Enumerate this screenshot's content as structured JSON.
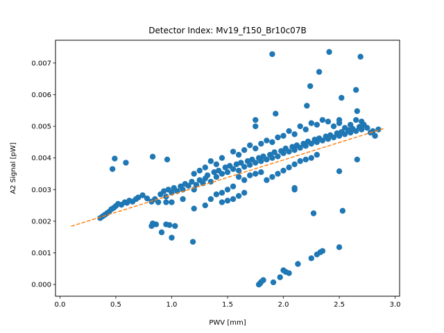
{
  "chart_data": {
    "type": "scatter",
    "title": "Detector Index: Mv19_f150_Br10c07B",
    "xlabel": "PWV [mm]",
    "ylabel": "A2 Signal [pW]",
    "xlim": [
      -0.04,
      3.04
    ],
    "ylim": [
      -0.00037,
      0.00772
    ],
    "xticks": [
      0.0,
      0.5,
      1.0,
      1.5,
      2.0,
      2.5,
      3.0
    ],
    "xtick_labels": [
      "0.0",
      "0.5",
      "1.0",
      "1.5",
      "2.0",
      "2.5",
      "3.0"
    ],
    "yticks": [
      0.0,
      0.001,
      0.002,
      0.003,
      0.004,
      0.005,
      0.006,
      0.007
    ],
    "ytick_labels": [
      "0.000",
      "0.001",
      "0.002",
      "0.003",
      "0.004",
      "0.005",
      "0.006",
      "0.007"
    ],
    "grid": false,
    "series": [
      {
        "name": "data",
        "style": "markers",
        "color": "#1f77b4",
        "points": [
          [
            0.36,
            0.0021
          ],
          [
            0.38,
            0.00215
          ],
          [
            0.4,
            0.0022
          ],
          [
            0.42,
            0.00225
          ],
          [
            0.44,
            0.0023
          ],
          [
            0.46,
            0.00238
          ],
          [
            0.48,
            0.00242
          ],
          [
            0.5,
            0.00248
          ],
          [
            0.52,
            0.00255
          ],
          [
            0.55,
            0.00252
          ],
          [
            0.58,
            0.0026
          ],
          [
            0.6,
            0.00258
          ],
          [
            0.62,
            0.00265
          ],
          [
            0.65,
            0.00262
          ],
          [
            0.68,
            0.0027
          ],
          [
            0.7,
            0.00275
          ],
          [
            0.74,
            0.00282
          ],
          [
            0.78,
            0.00272
          ],
          [
            0.82,
            0.00262
          ],
          [
            0.85,
            0.0027
          ],
          [
            0.88,
            0.0026
          ],
          [
            0.9,
            0.00285
          ],
          [
            0.93,
            0.00295
          ],
          [
            0.95,
            0.00278
          ],
          [
            0.97,
            0.003
          ],
          [
            1.0,
            0.0029
          ],
          [
            1.02,
            0.00305
          ],
          [
            1.05,
            0.00295
          ],
          [
            1.08,
            0.0031
          ],
          [
            1.1,
            0.003
          ],
          [
            1.12,
            0.00318
          ],
          [
            1.15,
            0.00312
          ],
          [
            1.18,
            0.00325
          ],
          [
            1.2,
            0.003
          ],
          [
            1.22,
            0.00315
          ],
          [
            1.25,
            0.0033
          ],
          [
            1.28,
            0.0032
          ],
          [
            1.3,
            0.00335
          ],
          [
            1.32,
            0.00345
          ],
          [
            1.35,
            0.00325
          ],
          [
            1.38,
            0.00355
          ],
          [
            1.4,
            0.0034
          ],
          [
            1.42,
            0.0036
          ],
          [
            1.45,
            0.0035
          ],
          [
            1.48,
            0.0037
          ],
          [
            1.5,
            0.00355
          ],
          [
            1.52,
            0.00375
          ],
          [
            1.55,
            0.00365
          ],
          [
            1.58,
            0.0038
          ],
          [
            1.6,
            0.0036
          ],
          [
            1.62,
            0.00385
          ],
          [
            1.65,
            0.00372
          ],
          [
            1.68,
            0.0039
          ],
          [
            1.7,
            0.00378
          ],
          [
            1.72,
            0.00395
          ],
          [
            1.75,
            0.00385
          ],
          [
            1.78,
            0.004
          ],
          [
            1.8,
            0.0039
          ],
          [
            1.82,
            0.00405
          ],
          [
            1.85,
            0.00395
          ],
          [
            1.88,
            0.0041
          ],
          [
            1.9,
            0.004
          ],
          [
            1.92,
            0.00418
          ],
          [
            1.95,
            0.00405
          ],
          [
            1.98,
            0.00422
          ],
          [
            2.0,
            0.00415
          ],
          [
            2.02,
            0.0043
          ],
          [
            2.05,
            0.0042
          ],
          [
            2.08,
            0.00435
          ],
          [
            2.1,
            0.00425
          ],
          [
            2.12,
            0.0044
          ],
          [
            2.15,
            0.00432
          ],
          [
            2.18,
            0.00445
          ],
          [
            2.2,
            0.00438
          ],
          [
            2.22,
            0.00452
          ],
          [
            2.25,
            0.00445
          ],
          [
            2.28,
            0.00458
          ],
          [
            2.3,
            0.0045
          ],
          [
            2.32,
            0.00462
          ],
          [
            2.35,
            0.00455
          ],
          [
            2.38,
            0.00468
          ],
          [
            2.4,
            0.0046
          ],
          [
            2.42,
            0.00472
          ],
          [
            2.45,
            0.00465
          ],
          [
            2.48,
            0.00478
          ],
          [
            2.5,
            0.0047
          ],
          [
            2.52,
            0.00482
          ],
          [
            2.55,
            0.00475
          ],
          [
            2.58,
            0.00488
          ],
          [
            2.6,
            0.0048
          ],
          [
            2.62,
            0.00492
          ],
          [
            2.65,
            0.00485
          ],
          [
            2.68,
            0.00498
          ],
          [
            2.7,
            0.0049
          ],
          [
            2.72,
            0.00505
          ],
          [
            2.75,
            0.00495
          ],
          [
            2.78,
            0.0048
          ],
          [
            2.8,
            0.00485
          ],
          [
            2.82,
            0.0047
          ],
          [
            2.85,
            0.0049
          ],
          [
            2.0,
            0.0047
          ],
          [
            2.05,
            0.00485
          ],
          [
            2.1,
            0.00475
          ],
          [
            2.15,
            0.005
          ],
          [
            2.2,
            0.0049
          ],
          [
            2.25,
            0.0051
          ],
          [
            2.3,
            0.00505
          ],
          [
            2.35,
            0.0052
          ],
          [
            2.4,
            0.00515
          ],
          [
            2.45,
            0.005
          ],
          [
            2.5,
            0.0051
          ],
          [
            2.55,
            0.00495
          ],
          [
            2.6,
            0.00505
          ],
          [
            2.65,
            0.0052
          ],
          [
            2.7,
            0.00515
          ],
          [
            1.7,
            0.0044
          ],
          [
            1.75,
            0.0043
          ],
          [
            1.8,
            0.00445
          ],
          [
            1.85,
            0.00455
          ],
          [
            1.9,
            0.0045
          ],
          [
            1.95,
            0.00465
          ],
          [
            1.55,
            0.0042
          ],
          [
            1.6,
            0.0041
          ],
          [
            1.65,
            0.00425
          ],
          [
            1.45,
            0.004
          ],
          [
            1.4,
            0.0038
          ],
          [
            1.35,
            0.0039
          ],
          [
            1.3,
            0.0037
          ],
          [
            1.25,
            0.0036
          ],
          [
            1.2,
            0.0035
          ],
          [
            1.6,
            0.0034
          ],
          [
            1.65,
            0.0033
          ],
          [
            1.7,
            0.00345
          ],
          [
            1.75,
            0.0035
          ],
          [
            1.8,
            0.00355
          ],
          [
            1.5,
            0.003
          ],
          [
            1.55,
            0.0031
          ],
          [
            1.45,
            0.0029
          ],
          [
            1.4,
            0.00285
          ],
          [
            1.35,
            0.0027
          ],
          [
            1.85,
            0.0033
          ],
          [
            1.9,
            0.0034
          ],
          [
            1.95,
            0.0035
          ],
          [
            2.0,
            0.0036
          ],
          [
            2.05,
            0.0037
          ],
          [
            2.1,
            0.0038
          ],
          [
            2.15,
            0.0039
          ],
          [
            2.2,
            0.00395
          ],
          [
            2.25,
            0.004
          ],
          [
            2.3,
            0.0041
          ],
          [
            1.5,
            0.00265
          ],
          [
            1.55,
            0.0027
          ],
          [
            1.6,
            0.0028
          ],
          [
            1.65,
            0.0029
          ],
          [
            1.45,
            0.0026
          ],
          [
            1.3,
            0.0025
          ],
          [
            1.2,
            0.0024
          ],
          [
            1.1,
            0.0027
          ],
          [
            1.0,
            0.0026
          ],
          [
            0.95,
            0.0026
          ],
          [
            1.75,
            0.005
          ],
          [
            1.75,
            0.0052
          ],
          [
            2.5,
            0.0052
          ],
          [
            2.1,
            0.003
          ],
          [
            0.47,
            0.00365
          ],
          [
            0.49,
            0.00398
          ],
          [
            0.59,
            0.00385
          ],
          [
            0.83,
            0.00404
          ],
          [
            0.96,
            0.00395
          ],
          [
            0.82,
            0.00185
          ],
          [
            0.83,
            0.00193
          ],
          [
            0.86,
            0.0019
          ],
          [
            0.91,
            0.00165
          ],
          [
            0.95,
            0.0019
          ],
          [
            0.98,
            0.00188
          ],
          [
            1.0,
            0.00148
          ],
          [
            1.03,
            0.00185
          ],
          [
            1.19,
            0.00135
          ],
          [
            1.9,
            0.00728
          ],
          [
            2.41,
            0.00735
          ],
          [
            2.69,
            0.0072
          ],
          [
            2.32,
            0.00672
          ],
          [
            2.24,
            0.00627
          ],
          [
            2.52,
            0.0059
          ],
          [
            2.65,
            0.00615
          ],
          [
            2.21,
            0.00565
          ],
          [
            1.93,
            0.0054
          ],
          [
            2.66,
            0.00548
          ],
          [
            2.27,
            0.00225
          ],
          [
            2.53,
            0.00233
          ],
          [
            2.5,
            0.00358
          ],
          [
            2.1,
            0.00305
          ],
          [
            2.66,
            0.00395
          ],
          [
            1.78,
            0.0
          ],
          [
            1.79,
            3e-05
          ],
          [
            1.8,
            8e-05
          ],
          [
            1.82,
            0.00014
          ],
          [
            1.91,
            7e-05
          ],
          [
            1.97,
            0.00023
          ],
          [
            2.0,
            0.00045
          ],
          [
            2.02,
            0.0004
          ],
          [
            2.05,
            0.00036
          ],
          [
            2.13,
            0.00065
          ],
          [
            2.25,
            0.00083
          ],
          [
            2.3,
            0.00095
          ],
          [
            2.33,
            0.00102
          ],
          [
            2.35,
            0.00106
          ],
          [
            2.5,
            0.00118
          ]
        ]
      },
      {
        "name": "fit",
        "style": "dashed-line",
        "color": "#ff7f0e",
        "points": [
          [
            0.1,
            0.00184
          ],
          [
            2.9,
            0.00493
          ]
        ]
      }
    ]
  }
}
